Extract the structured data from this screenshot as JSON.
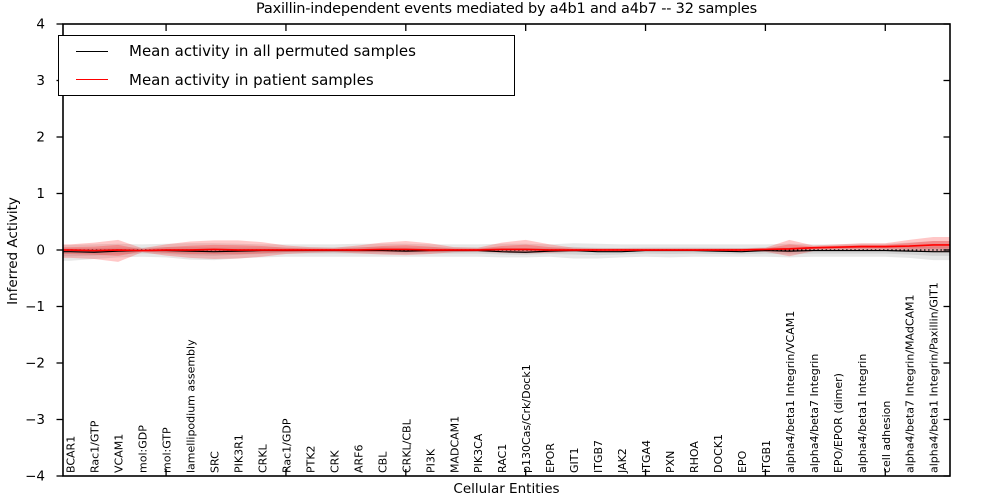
{
  "chart_data": {
    "type": "line",
    "title": "Paxillin-independent events mediated by a4b1 and a4b7 -- 32 samples",
    "xlabel": "Cellular Entities",
    "ylabel": "Inferred Activity",
    "ylim": [
      -4,
      4
    ],
    "yticks": [
      4,
      3,
      2,
      1,
      0,
      -1,
      -2,
      -3,
      -4
    ],
    "x_major_tick_indices": [
      4,
      9,
      14,
      19,
      24,
      29,
      34
    ],
    "zero_reference_line": 0,
    "grid": false,
    "legend_position": "upper left",
    "categories": [
      "BCAR1",
      "Rac1/GTP",
      "VCAM1",
      "mol:GDP",
      "mol:GTP",
      "lamellipodium assembly",
      "SRC",
      "PIK3R1",
      "CRKL",
      "Rac1/GDP",
      "PTK2",
      "CRK",
      "ARF6",
      "CBL",
      "CRKL/CBL",
      "PI3K",
      "MADCAM1",
      "PIK3CA",
      "RAC1",
      "p130Cas/Crk/Dock1",
      "EPOR",
      "GIT1",
      "ITGB7",
      "JAK2",
      "ITGA4",
      "PXN",
      "RHOA",
      "DOCK1",
      "EPO",
      "ITGB1",
      "alpha4/beta1 Integrin/VCAM1",
      "alpha4/beta7 Integrin",
      "EPO/EPOR (dimer)",
      "alpha4/beta1 Integrin",
      "cell adhesion",
      "alpha4/beta7 Integrin/MAdCAM1",
      "alpha4/beta1 Integrin/Paxillin/GIT1"
    ],
    "series": [
      {
        "name": "Mean activity in all permuted samples",
        "color": "#000000",
        "width": 1.2,
        "values": [
          -0.03,
          -0.04,
          -0.02,
          -0.01,
          -0.01,
          -0.02,
          -0.03,
          -0.02,
          -0.01,
          -0.01,
          -0.01,
          -0.01,
          -0.01,
          -0.01,
          -0.02,
          -0.01,
          -0.01,
          -0.01,
          -0.03,
          -0.04,
          -0.02,
          -0.01,
          -0.03,
          -0.03,
          -0.01,
          -0.01,
          -0.01,
          -0.02,
          -0.03,
          -0.01,
          -0.02,
          -0.01,
          -0.01,
          -0.01,
          -0.01,
          -0.02,
          -0.03
        ]
      },
      {
        "name": "Mean activity in patient samples",
        "color": "#ff0000",
        "width": 1.7,
        "values": [
          0,
          -0.01,
          0,
          -0.01,
          0,
          0,
          0.01,
          0,
          0,
          0,
          0,
          0,
          0,
          0.01,
          0.01,
          0,
          0,
          0,
          0.01,
          0.01,
          0,
          0,
          0,
          0,
          0,
          0,
          0,
          0,
          0,
          0.01,
          0.02,
          0.04,
          0.05,
          0.06,
          0.06,
          0.07,
          0.09
        ]
      }
    ],
    "bands": [
      {
        "name": "permuted-samples-range",
        "color": "#787878",
        "opacity": 0.18,
        "center_series": 0,
        "inner_scale": 0.5,
        "upper": [
          0.09,
          0.1,
          0.11,
          0.1,
          0.11,
          0.12,
          0.12,
          0.11,
          0.1,
          0.1,
          0.1,
          0.1,
          0.11,
          0.11,
          0.11,
          0.1,
          0.1,
          0.1,
          0.11,
          0.11,
          0.1,
          0.12,
          0.11,
          0.1,
          0.1,
          0.1,
          0.1,
          0.1,
          0.1,
          0.1,
          0.11,
          0.1,
          0.1,
          0.11,
          0.11,
          0.13,
          0.16
        ],
        "lower": [
          -0.19,
          -0.16,
          -0.13,
          -0.12,
          -0.13,
          -0.17,
          -0.18,
          -0.15,
          -0.13,
          -0.12,
          -0.12,
          -0.12,
          -0.12,
          -0.12,
          -0.12,
          -0.12,
          -0.12,
          -0.12,
          -0.13,
          -0.13,
          -0.12,
          -0.15,
          -0.15,
          -0.13,
          -0.12,
          -0.13,
          -0.12,
          -0.12,
          -0.12,
          -0.12,
          -0.13,
          -0.12,
          -0.12,
          -0.12,
          -0.12,
          -0.14,
          -0.18
        ]
      },
      {
        "name": "patient-samples-range",
        "color": "#ff0000",
        "opacity": 0.22,
        "center_series": 1,
        "inner_scale": 0.5,
        "upper": [
          0.1,
          0.13,
          0.18,
          0.03,
          0.1,
          0.15,
          0.17,
          0.17,
          0.14,
          0.08,
          0.05,
          0.04,
          0.08,
          0.13,
          0.16,
          0.12,
          0.05,
          0.04,
          0.13,
          0.18,
          0.1,
          0.04,
          0.03,
          0.03,
          0.03,
          0.03,
          0.03,
          0.03,
          0.03,
          0.04,
          0.18,
          0.08,
          0.1,
          0.12,
          0.12,
          0.18,
          0.23
        ],
        "lower": [
          -0.14,
          -0.16,
          -0.21,
          -0.04,
          -0.1,
          -0.14,
          -0.16,
          -0.15,
          -0.12,
          -0.07,
          -0.05,
          -0.04,
          -0.06,
          -0.08,
          -0.09,
          -0.07,
          -0.04,
          -0.03,
          -0.05,
          -0.06,
          -0.05,
          -0.03,
          -0.03,
          -0.02,
          -0.02,
          -0.02,
          -0.02,
          -0.02,
          -0.02,
          -0.03,
          -0.11,
          -0.02,
          -0.01,
          0.0,
          0.0,
          -0.02,
          -0.04
        ]
      }
    ]
  }
}
